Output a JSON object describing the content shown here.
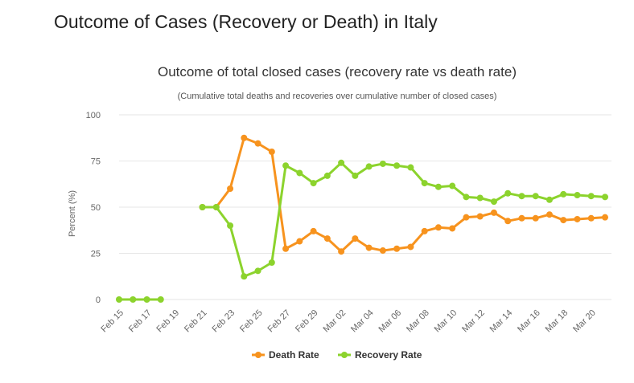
{
  "page": {
    "title": "Outcome of Cases (Recovery or Death) in Italy"
  },
  "colors": {
    "death": "#f7931e",
    "recovery": "#8cd32d",
    "grid": "#e6e6e6",
    "axis_text": "#666666"
  },
  "chart_data": {
    "type": "line",
    "title": "Outcome of total closed cases (recovery rate vs death rate)",
    "subtitle": "(Cumulative total deaths and recoveries over cumulative number of closed cases)",
    "xlabel": "",
    "ylabel": "Percent (%)",
    "ylim": [
      0,
      100
    ],
    "yticks": [
      0,
      25,
      50,
      75,
      100
    ],
    "grid": true,
    "legend_position": "bottom-center",
    "categories": [
      "Feb 15",
      "Feb 16",
      "Feb 17",
      "Feb 18",
      "Feb 19",
      "Feb 20",
      "Feb 21",
      "Feb 22",
      "Feb 23",
      "Feb 24",
      "Feb 25",
      "Feb 26",
      "Feb 27",
      "Feb 28",
      "Feb 29",
      "Mar 01",
      "Mar 02",
      "Mar 03",
      "Mar 04",
      "Mar 05",
      "Mar 06",
      "Mar 07",
      "Mar 08",
      "Mar 09",
      "Mar 10",
      "Mar 11",
      "Mar 12",
      "Mar 13",
      "Mar 14",
      "Mar 15",
      "Mar 16",
      "Mar 17",
      "Mar 18",
      "Mar 19",
      "Mar 20",
      "Mar 21"
    ],
    "xtick_labels": [
      "Feb 15",
      "Feb 17",
      "Feb 19",
      "Feb 21",
      "Feb 23",
      "Feb 25",
      "Feb 27",
      "Feb 29",
      "Mar 02",
      "Mar 04",
      "Mar 06",
      "Mar 08",
      "Mar 10",
      "Mar 12",
      "Mar 14",
      "Mar 16",
      "Mar 18",
      "Mar 20"
    ],
    "series": [
      {
        "name": "Death Rate",
        "color": "#f7931e",
        "values": [
          null,
          null,
          null,
          null,
          null,
          null,
          50,
          50,
          60,
          87.5,
          84.5,
          80,
          27.5,
          31.5,
          37,
          33,
          26,
          33,
          28,
          26.5,
          27.5,
          28.5,
          37,
          39,
          38.5,
          44.5,
          45,
          47,
          42.5,
          44,
          44,
          46,
          43,
          43.5,
          44,
          44.5
        ]
      },
      {
        "name": "Recovery Rate",
        "color": "#8cd32d",
        "values": [
          0,
          0,
          0,
          0,
          null,
          null,
          50,
          50,
          40,
          12.5,
          15.5,
          20,
          72.5,
          68.5,
          63,
          67,
          74,
          67,
          72,
          73.5,
          72.5,
          71.5,
          63,
          61,
          61.5,
          55.5,
          55,
          53,
          57.5,
          56,
          56,
          54,
          57,
          56.5,
          56,
          55.5
        ]
      }
    ]
  }
}
